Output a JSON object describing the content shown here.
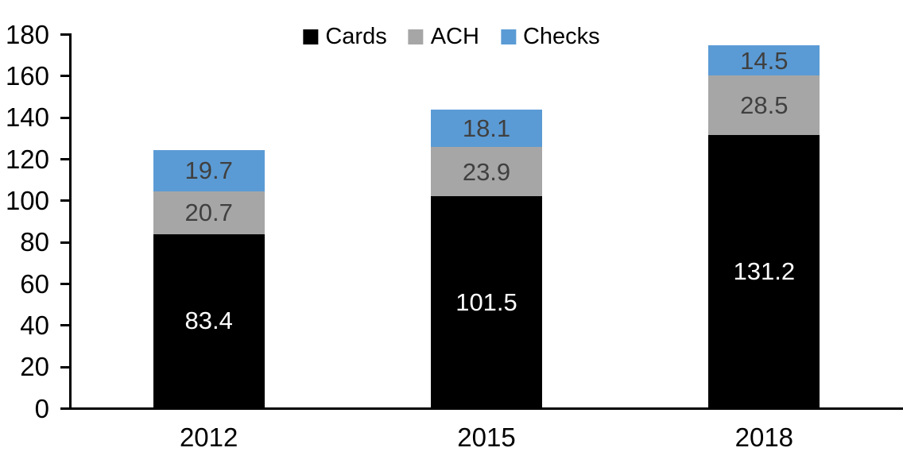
{
  "chart_data": {
    "type": "bar",
    "stacked": true,
    "title": "",
    "categories": [
      "2012",
      "2015",
      "2018"
    ],
    "series": [
      {
        "name": "Cards",
        "color": "#000000",
        "label_color": "#FFFFFF",
        "values": [
          83.4,
          101.5,
          131.2
        ]
      },
      {
        "name": "ACH",
        "color": "#A6A6A6",
        "label_color": "#404040",
        "values": [
          20.7,
          23.9,
          28.5
        ]
      },
      {
        "name": "Checks",
        "color": "#5B9BD5",
        "label_color": "#404040",
        "values": [
          19.7,
          18.1,
          14.5
        ]
      }
    ],
    "totals": [
      123.8,
      143.5,
      174.2
    ],
    "ylim": [
      0,
      180
    ],
    "yticks": [
      0,
      20,
      40,
      60,
      80,
      100,
      120,
      140,
      160,
      180
    ],
    "xlabel": "",
    "ylabel": "",
    "legend_position": "top-center",
    "legend_entries": [
      "Cards",
      "ACH",
      "Checks"
    ],
    "grid": false,
    "axis_color": "#000000",
    "background_color": "#FFFFFF"
  }
}
